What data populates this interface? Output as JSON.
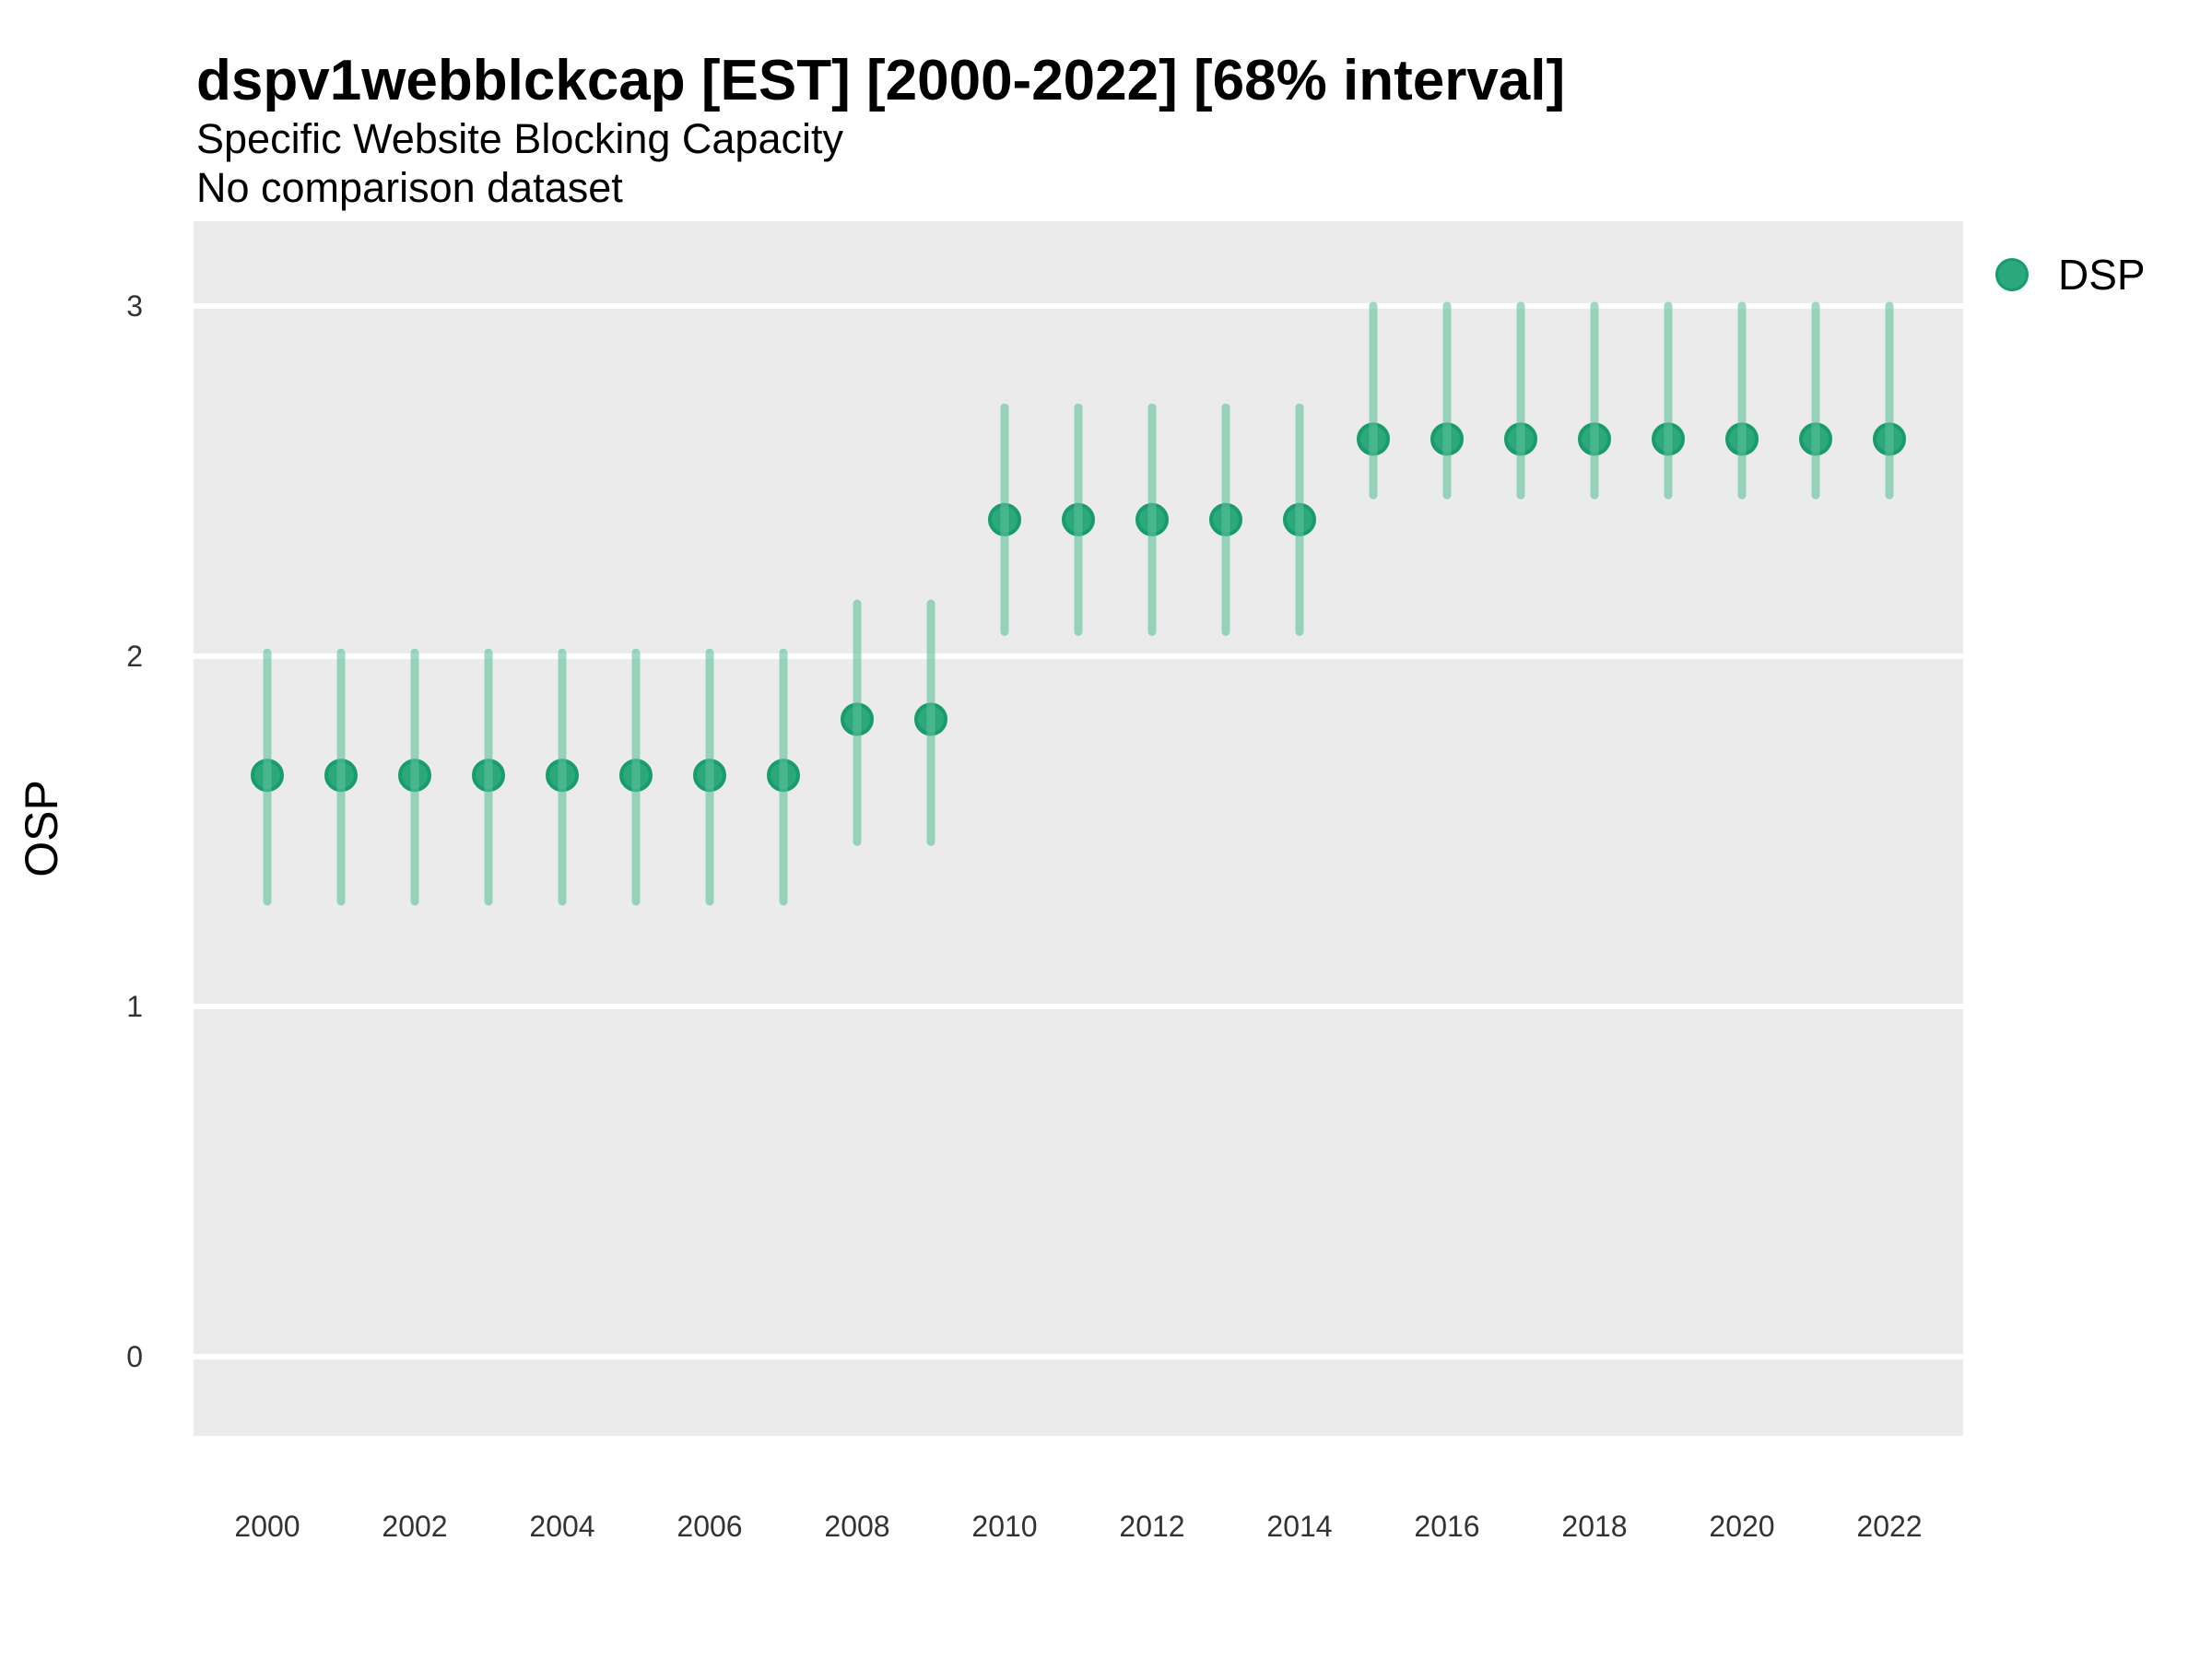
{
  "titles": {
    "main": "dspv1webblckcap [EST] [2000-2022] [68% interval]",
    "subtitle": "Specific Website Blocking Capacity",
    "note": "No comparison dataset"
  },
  "axes": {
    "y": {
      "title": "OSP",
      "tick_labels": [
        "0",
        "1",
        "2",
        "3"
      ],
      "tick_values": [
        0,
        1,
        2,
        3
      ]
    },
    "x": {
      "title": "",
      "tick_labels": [
        "2000",
        "2002",
        "2004",
        "2006",
        "2008",
        "2010",
        "2012",
        "2014",
        "2016",
        "2018",
        "2020",
        "2022"
      ]
    }
  },
  "legend": {
    "items": [
      {
        "label": "DSP",
        "color": "#2BA97C"
      }
    ]
  },
  "colors": {
    "panel_background": "#EBEBEB",
    "gridline": "#FFFFFF",
    "point_fill": "#2BA97C",
    "point_stroke": "#189B6D",
    "interval_line": "rgba(93,192,154,0.6)",
    "tick_text": "#333333",
    "title_text": "#000000"
  },
  "chart_data": {
    "type": "scatter",
    "subtype": "pointrange",
    "title": "dspv1webblckcap [EST] [2000-2022] [68% interval]",
    "subtitle": "Specific Website Blocking Capacity",
    "note": "No comparison dataset",
    "interval": "68%",
    "xlabel": "",
    "ylabel": "OSP",
    "ylim": [
      -0.2263,
      3.2421
    ],
    "yticks": [
      0,
      1,
      2,
      3
    ],
    "grid": true,
    "legend_position": "right-top",
    "x": [
      2000,
      2001,
      2002,
      2003,
      2004,
      2005,
      2006,
      2007,
      2008,
      2009,
      2010,
      2011,
      2012,
      2013,
      2014,
      2015,
      2016,
      2017,
      2018,
      2019,
      2020,
      2021,
      2022
    ],
    "series": [
      {
        "name": "DSP",
        "estimate": [
          1.66,
          1.66,
          1.66,
          1.66,
          1.66,
          1.66,
          1.66,
          1.66,
          1.82,
          1.82,
          2.39,
          2.39,
          2.39,
          2.39,
          2.39,
          2.62,
          2.62,
          2.62,
          2.62,
          2.62,
          2.62,
          2.62,
          2.62
        ],
        "lower": [
          1.3,
          1.3,
          1.3,
          1.3,
          1.3,
          1.3,
          1.3,
          1.3,
          1.47,
          1.47,
          2.07,
          2.07,
          2.07,
          2.07,
          2.07,
          2.46,
          2.46,
          2.46,
          2.46,
          2.46,
          2.46,
          2.46,
          2.46
        ],
        "upper": [
          2.01,
          2.01,
          2.01,
          2.01,
          2.01,
          2.01,
          2.01,
          2.01,
          2.15,
          2.15,
          2.71,
          2.71,
          2.71,
          2.71,
          2.71,
          3.0,
          3.0,
          3.0,
          3.0,
          3.0,
          3.0,
          3.0,
          3.0
        ]
      }
    ]
  }
}
